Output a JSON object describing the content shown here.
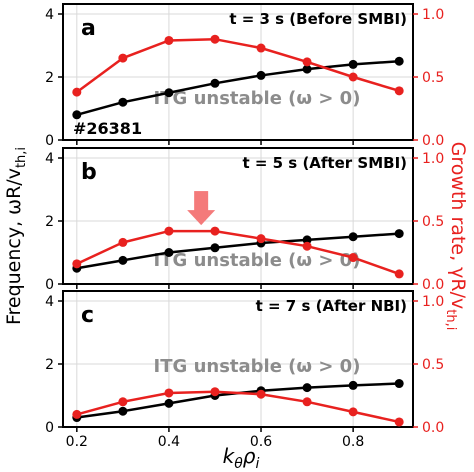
{
  "colors": {
    "frequency": "#000000",
    "growth": "#e8211f",
    "annotation": "#8c8c8c",
    "arrow": "#f47a7a"
  },
  "axis_labels": {
    "y_left": "Frequency, ωR/v",
    "y_left_sub": "th,i",
    "y_right": "Growth rate, γR/v",
    "y_right_sub": "th,i",
    "x": "k",
    "x_sub1": "θ",
    "x_mid": "ρ",
    "x_sub2": "i"
  },
  "chart_data": [
    {
      "type": "line",
      "panel_label": "a",
      "title": "t = 3 s (Before SMBI)",
      "annotation": "ITG unstable (ω > 0)",
      "shot_label": "#26381",
      "x": [
        0.2,
        0.3,
        0.4,
        0.5,
        0.6,
        0.7,
        0.8,
        0.9
      ],
      "x_ticks": [
        "0.2",
        "0.4",
        "0.6",
        "0.8"
      ],
      "xlim": [
        0.17,
        0.93
      ],
      "ylim_left": [
        0,
        4
      ],
      "y_ticks_left": [
        "0",
        "2",
        "4"
      ],
      "ylim_right": [
        0,
        1
      ],
      "y_ticks_right": [
        "0.0",
        "0.5",
        "1.0"
      ],
      "series": [
        {
          "name": "Frequency",
          "axis": "left",
          "values": [
            0.8,
            1.2,
            1.5,
            1.8,
            2.05,
            2.25,
            2.4,
            2.5
          ]
        },
        {
          "name": "Growth rate",
          "axis": "right",
          "values": [
            0.38,
            0.65,
            0.79,
            0.8,
            0.73,
            0.62,
            0.5,
            0.39
          ]
        }
      ],
      "grid": true
    },
    {
      "type": "line",
      "panel_label": "b",
      "title": "t = 5 s (After SMBI)",
      "annotation": "ITG unstable (ω > 0)",
      "arrow_x": 0.47,
      "x": [
        0.2,
        0.3,
        0.4,
        0.5,
        0.6,
        0.7,
        0.8,
        0.9
      ],
      "x_ticks": [
        "0.2",
        "0.4",
        "0.6",
        "0.8"
      ],
      "xlim": [
        0.17,
        0.93
      ],
      "ylim_left": [
        0,
        4
      ],
      "y_ticks_left": [
        "0",
        "2",
        "4"
      ],
      "ylim_right": [
        0,
        1
      ],
      "y_ticks_right": [
        "0.0",
        "0.5",
        "1.0"
      ],
      "series": [
        {
          "name": "Frequency",
          "axis": "left",
          "values": [
            0.5,
            0.75,
            1.0,
            1.15,
            1.3,
            1.4,
            1.5,
            1.6
          ]
        },
        {
          "name": "Growth rate",
          "axis": "right",
          "values": [
            0.16,
            0.33,
            0.42,
            0.42,
            0.36,
            0.3,
            0.21,
            0.08
          ]
        }
      ],
      "grid": true
    },
    {
      "type": "line",
      "panel_label": "c",
      "title": "t = 7 s (After NBI)",
      "annotation": "ITG unstable (ω > 0)",
      "x": [
        0.2,
        0.3,
        0.4,
        0.5,
        0.6,
        0.7,
        0.8,
        0.9
      ],
      "x_ticks": [
        "0.2",
        "0.4",
        "0.6",
        "0.8"
      ],
      "xlim": [
        0.17,
        0.93
      ],
      "ylim_left": [
        0,
        4
      ],
      "y_ticks_left": [
        "0",
        "2",
        "4"
      ],
      "ylim_right": [
        0,
        1
      ],
      "y_ticks_right": [
        "0.0",
        "0.5",
        "1.0"
      ],
      "series": [
        {
          "name": "Frequency",
          "axis": "left",
          "values": [
            0.3,
            0.5,
            0.75,
            1.0,
            1.15,
            1.25,
            1.32,
            1.38
          ]
        },
        {
          "name": "Growth rate",
          "axis": "right",
          "values": [
            0.1,
            0.2,
            0.27,
            0.28,
            0.26,
            0.2,
            0.12,
            0.04
          ]
        }
      ],
      "grid": true
    }
  ]
}
